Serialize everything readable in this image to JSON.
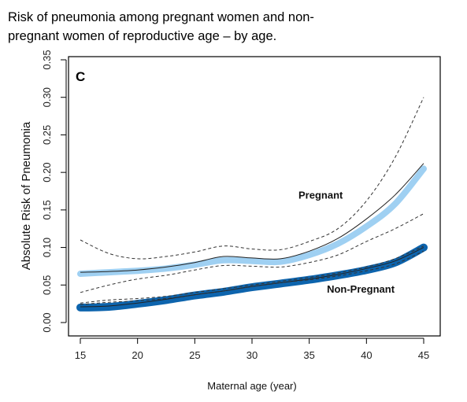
{
  "caption": {
    "line1": "Risk of pneumonia among pregnant women and non-",
    "line2": "pregnant women of reproductive age – by age."
  },
  "chart_data": {
    "type": "line",
    "panel_label": "C",
    "title": "",
    "xlabel": "Maternal age (year)",
    "ylabel": "Absolute Risk of Pneumonia",
    "xlim": [
      15,
      45
    ],
    "ylim": [
      0.0,
      0.35
    ],
    "xticks": [
      "15",
      "20",
      "25",
      "30",
      "35",
      "40",
      "45"
    ],
    "yticks": [
      "0.00",
      "0.05",
      "0.10",
      "0.15",
      "0.20",
      "0.25",
      "0.30",
      "0.35"
    ],
    "grid": false,
    "x": [
      15,
      17.5,
      20,
      22.5,
      25,
      27.5,
      30,
      32.5,
      35,
      37.5,
      40,
      42.5,
      45
    ],
    "series": [
      {
        "name": "Pregnant",
        "label_at": [
          36,
          0.165
        ],
        "band_color": "#9fd0f2",
        "values": [
          0.065,
          0.067,
          0.069,
          0.072,
          0.077,
          0.083,
          0.082,
          0.081,
          0.09,
          0.105,
          0.128,
          0.158,
          0.205
        ],
        "fit": [
          0.067,
          0.068,
          0.07,
          0.074,
          0.08,
          0.088,
          0.086,
          0.085,
          0.095,
          0.112,
          0.138,
          0.17,
          0.212
        ],
        "lower": [
          0.04,
          0.05,
          0.058,
          0.063,
          0.07,
          0.076,
          0.075,
          0.074,
          0.08,
          0.09,
          0.108,
          0.125,
          0.145
        ],
        "upper": [
          0.11,
          0.092,
          0.085,
          0.088,
          0.094,
          0.102,
          0.098,
          0.097,
          0.108,
          0.125,
          0.162,
          0.22,
          0.3
        ]
      },
      {
        "name": "Non-Pregnant",
        "label_at": [
          39.5,
          0.04
        ],
        "band_color": "#0d64ad",
        "values": [
          0.02,
          0.021,
          0.025,
          0.03,
          0.036,
          0.041,
          0.047,
          0.052,
          0.057,
          0.063,
          0.07,
          0.08,
          0.1
        ],
        "fit": [
          0.021,
          0.022,
          0.026,
          0.031,
          0.037,
          0.042,
          0.048,
          0.053,
          0.058,
          0.064,
          0.072,
          0.082,
          0.1
        ],
        "lower": [
          0.024,
          0.027,
          0.029,
          0.032,
          0.037,
          0.042,
          0.048,
          0.053,
          0.057,
          0.062,
          0.069,
          0.078,
          0.095
        ],
        "upper": [
          0.026,
          0.03,
          0.032,
          0.035,
          0.04,
          0.045,
          0.05,
          0.055,
          0.06,
          0.066,
          0.074,
          0.085,
          0.102
        ]
      }
    ]
  }
}
